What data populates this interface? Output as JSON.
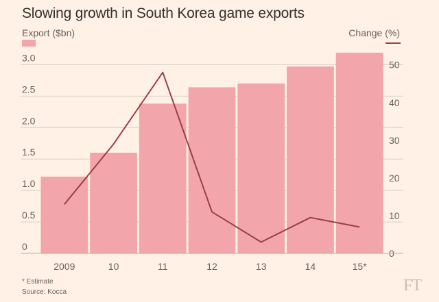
{
  "chart_data": {
    "type": "bar+line",
    "title": "Slowing growth in South Korea game exports",
    "ylabel_left": "Export ($bn)",
    "ylabel_right": "Change (%)",
    "categories": [
      "2009",
      "10",
      "11",
      "12",
      "13",
      "14",
      "15*"
    ],
    "series": [
      {
        "name": "Export ($bn)",
        "type": "bar",
        "axis": "left",
        "color": "#f2a5ab",
        "values": [
          1.22,
          1.6,
          2.38,
          2.64,
          2.7,
          2.97,
          3.19
        ]
      },
      {
        "name": "Change (%)",
        "type": "line",
        "axis": "right",
        "color": "#9c3d4a",
        "values": [
          13,
          29,
          48,
          11,
          3,
          9.5,
          7
        ]
      }
    ],
    "ylim_left": [
      0,
      3.2
    ],
    "ylim_right": [
      0,
      53.4
    ],
    "yticks_left": [
      0,
      0.5,
      1.0,
      1.5,
      2.0,
      2.5,
      3.0
    ],
    "yticks_left_labels": [
      "0",
      "0.5",
      "1.0",
      "1.5",
      "2.0",
      "2.5",
      "3.0"
    ],
    "yticks_right": [
      0,
      10,
      20,
      30,
      40,
      50
    ],
    "yticks_right_labels": [
      "0",
      "10",
      "20",
      "30",
      "40",
      "50"
    ],
    "grid": true,
    "footnote": "* Estimate",
    "source": "Source: Kocca",
    "brand": "FT"
  },
  "colors": {
    "background": "#fff1e5",
    "bar": "#f2a5ab",
    "line": "#9c3d4a",
    "grid": "#d9cfc6",
    "text": "#66605c"
  }
}
